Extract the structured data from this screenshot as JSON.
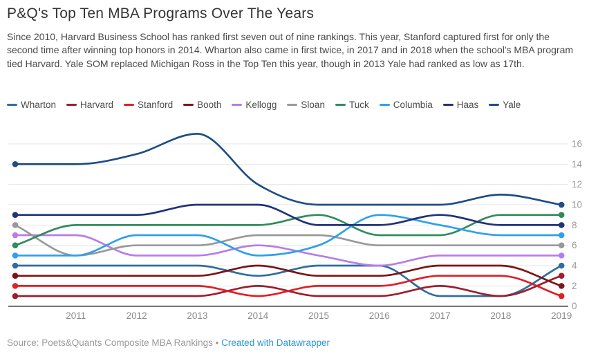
{
  "header": {
    "title": "P&Q's Top Ten MBA Programs Over The Years",
    "description": "Since 2010, Harvard Business School has ranked first seven out of nine rankings. This year, Stanford captured first for only the second time after winning top honors in 2014. Wharton also came in first twice, in 2017 and in 2018 when the school's MBA program tied Harvard. Yale SOM replaced Michigan Ross in the Top Ten this year, though in 2013 Yale had ranked as low as 17th."
  },
  "chart_data": {
    "type": "line",
    "title": "P&Q's Top Ten MBA Programs Over The Years",
    "x": [
      2010,
      2011,
      2012,
      2013,
      2014,
      2015,
      2016,
      2017,
      2018,
      2019
    ],
    "x_tick_labels": [
      "2011",
      "2012",
      "2013",
      "2014",
      "2015",
      "2016",
      "2017",
      "2018",
      "2019"
    ],
    "y_ticks": [
      0,
      2,
      4,
      6,
      8,
      10,
      12,
      14,
      16
    ],
    "ylim": [
      0,
      17.6
    ],
    "y_axis_side": "right",
    "grid": true,
    "legend_position": "top",
    "xlabel": "",
    "ylabel": "",
    "series": [
      {
        "name": "Wharton",
        "color": "#2e6e9e",
        "values": [
          4,
          4,
          4,
          4,
          3,
          4,
          4,
          1,
          1,
          4
        ]
      },
      {
        "name": "Harvard",
        "color": "#9c1f2e",
        "values": [
          1,
          1,
          1,
          1,
          2,
          1,
          1,
          2,
          1,
          3
        ]
      },
      {
        "name": "Stanford",
        "color": "#e01f26",
        "values": [
          2,
          2,
          2,
          2,
          1,
          2,
          2,
          3,
          3,
          1
        ]
      },
      {
        "name": "Booth",
        "color": "#7a1518",
        "values": [
          3,
          3,
          3,
          3,
          4,
          3,
          3,
          4,
          4,
          2
        ]
      },
      {
        "name": "Kellogg",
        "color": "#b87be8",
        "values": [
          7,
          7,
          5,
          5,
          6,
          5,
          4,
          5,
          5,
          5
        ]
      },
      {
        "name": "Sloan",
        "color": "#999999",
        "values": [
          8,
          5,
          6,
          6,
          7,
          7,
          6,
          6,
          6,
          6
        ]
      },
      {
        "name": "Tuck",
        "color": "#2f8c5a",
        "values": [
          6,
          8,
          8,
          8,
          8,
          9,
          7,
          7,
          9,
          9
        ]
      },
      {
        "name": "Columbia",
        "color": "#2ea0e8",
        "values": [
          5,
          5,
          7,
          7,
          5,
          6,
          9,
          8,
          7,
          7
        ]
      },
      {
        "name": "Haas",
        "color": "#20327a",
        "values": [
          9,
          9,
          9,
          10,
          10,
          8,
          8,
          9,
          8,
          8
        ]
      },
      {
        "name": "Yale",
        "color": "#1e4d85",
        "values": [
          14,
          14,
          15,
          17,
          12,
          10,
          10,
          10,
          11,
          10
        ]
      }
    ]
  },
  "footer": {
    "source_text": "Source: Poets&Quants Composite MBA Rankings",
    "separator": "•",
    "link_label": "Created with Datawrapper"
  }
}
